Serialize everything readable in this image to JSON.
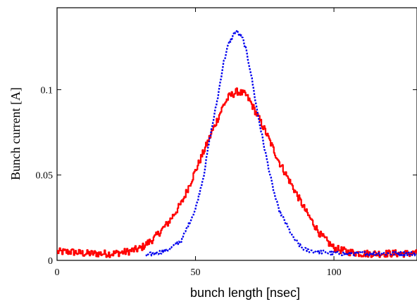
{
  "chart_data": {
    "type": "line",
    "title": "",
    "xlabel": "bunch length [nsec]",
    "ylabel": "Bunch current [A]",
    "xlim": [
      0,
      130
    ],
    "ylim": [
      0,
      0.148
    ],
    "xticks": [
      0,
      50,
      100
    ],
    "xtick_labels": [
      "0",
      "50",
      "100"
    ],
    "yticks": [
      0,
      0.05,
      0.1
    ],
    "ytick_labels": [
      "0",
      "0.05",
      "0.1"
    ],
    "grid": false,
    "legend": "none",
    "series": [
      {
        "color": "#ff0000",
        "style": "solid",
        "x": [
          0,
          5,
          10,
          15,
          20,
          25,
          30,
          35,
          40,
          45,
          50,
          55,
          60,
          62,
          65,
          68,
          70,
          75,
          80,
          85,
          90,
          95,
          100,
          105,
          110,
          115,
          120,
          125,
          130
        ],
        "y": [
          0.005,
          0.005,
          0.004,
          0.004,
          0.004,
          0.005,
          0.007,
          0.013,
          0.022,
          0.034,
          0.053,
          0.072,
          0.091,
          0.096,
          0.099,
          0.097,
          0.092,
          0.076,
          0.058,
          0.043,
          0.028,
          0.015,
          0.007,
          0.005,
          0.004,
          0.004,
          0.004,
          0.004,
          0.004
        ]
      },
      {
        "color": "#0000ee",
        "style": "dotted",
        "x": [
          32,
          35,
          40,
          45,
          50,
          53,
          55,
          58,
          60,
          62,
          64,
          65,
          67,
          68,
          70,
          72,
          75,
          78,
          80,
          85,
          88,
          90,
          95,
          100,
          105,
          110,
          115,
          120,
          125,
          130
        ],
        "y": [
          0.003,
          0.004,
          0.006,
          0.012,
          0.03,
          0.05,
          0.07,
          0.095,
          0.115,
          0.127,
          0.133,
          0.134,
          0.13,
          0.125,
          0.11,
          0.09,
          0.065,
          0.042,
          0.03,
          0.014,
          0.008,
          0.006,
          0.005,
          0.004,
          0.004,
          0.004,
          0.004,
          0.004,
          0.004,
          0.004
        ]
      }
    ]
  }
}
